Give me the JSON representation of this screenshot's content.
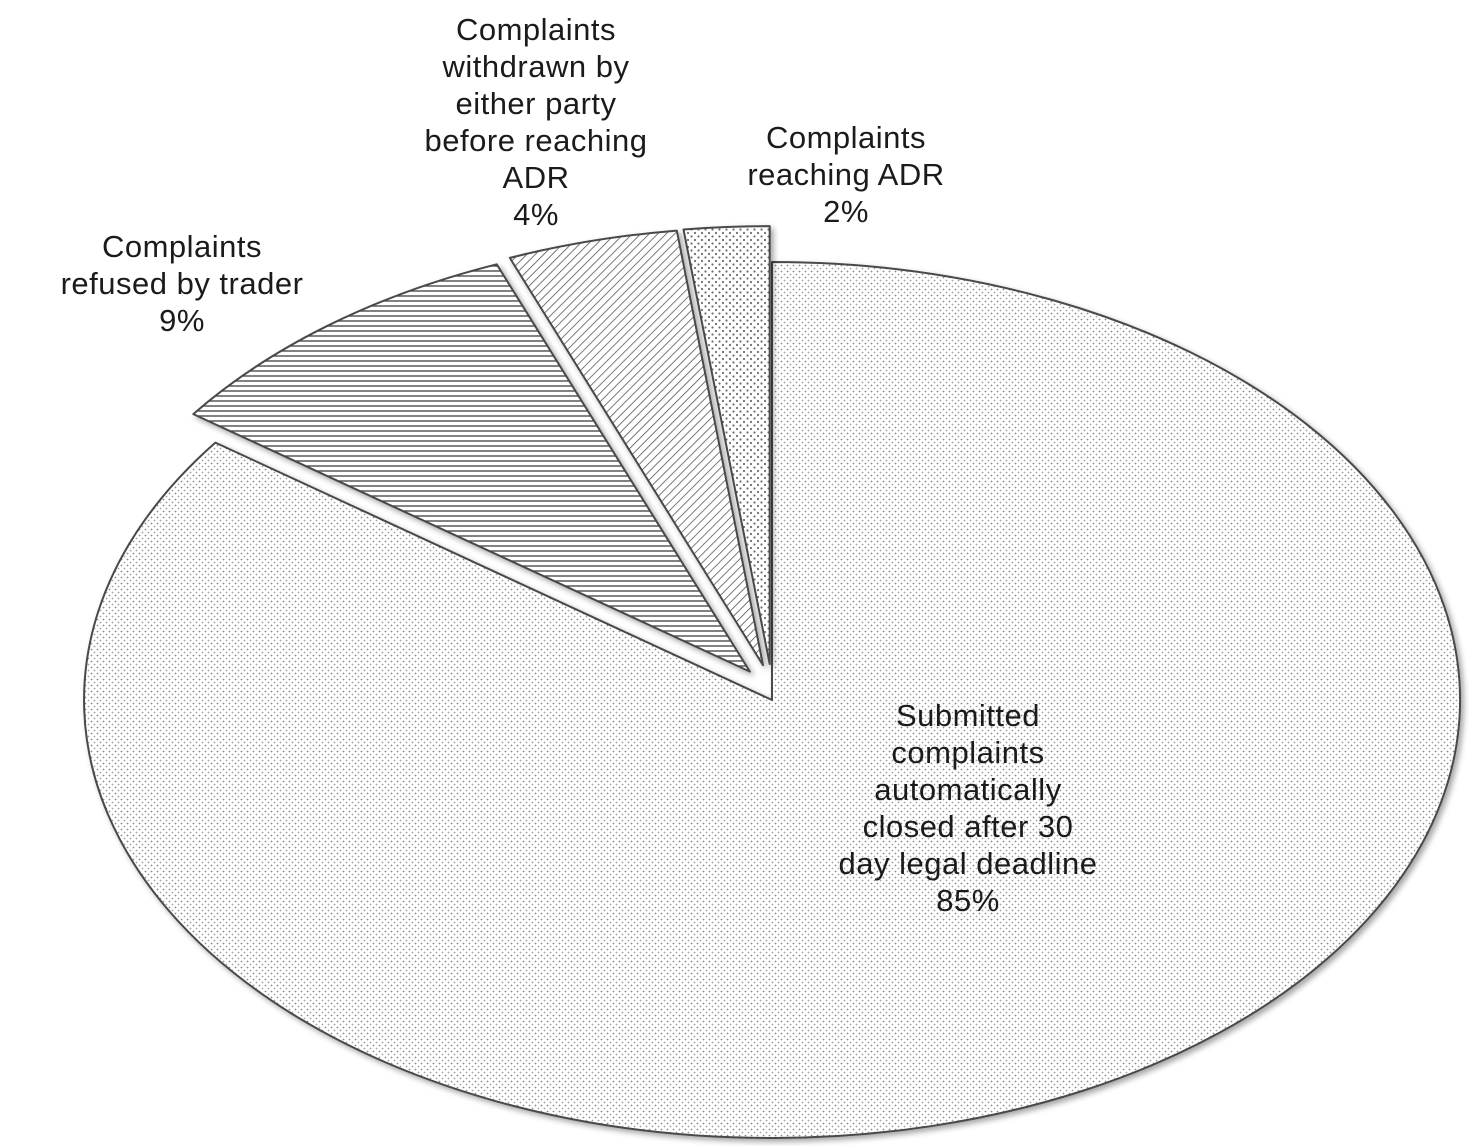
{
  "chart_data": {
    "type": "pie",
    "slices": [
      {
        "name": "Submitted complaints automatically closed after 30 day legal deadline",
        "value": 85,
        "label_lines": [
          "Submitted",
          "complaints",
          "automatically",
          "closed after 30",
          "day legal deadline"
        ],
        "percent_text": "85%",
        "pattern": "fine-dots"
      },
      {
        "name": "Complaints refused by trader",
        "value": 9,
        "label_lines": [
          "Complaints",
          "refused by trader"
        ],
        "percent_text": "9%",
        "pattern": "horizontal-lines"
      },
      {
        "name": "Complaints withdrawn by either party before reaching ADR",
        "value": 4,
        "label_lines": [
          "Complaints",
          "withdrawn by",
          "either party",
          "before reaching",
          "ADR"
        ],
        "percent_text": "4%",
        "pattern": "diagonal-lines"
      },
      {
        "name": "Complaints reaching ADR",
        "value": 2,
        "label_lines": [
          "Complaints",
          "reaching ADR"
        ],
        "percent_text": "2%",
        "pattern": "sparse-dots"
      }
    ],
    "start_angle_deg": 90,
    "direction": "clockwise",
    "exploded_slices": [
      "Complaints refused by trader",
      "Complaints withdrawn by either party before reaching ADR",
      "Complaints reaching ADR"
    ],
    "legend": "none",
    "colors": {
      "edge": "#4a4a4a",
      "ink": "#1b1b1b",
      "background": "#ffffff"
    }
  }
}
